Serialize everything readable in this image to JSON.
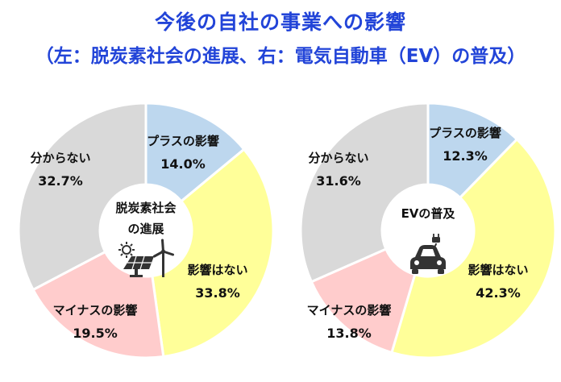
{
  "header": {
    "title": "今後の自社の事業への影響",
    "subtitle": "（左：脱炭素社会の進展、右：電気自動車（EV）の普及）"
  },
  "colors": {
    "title": "#2244d8",
    "positive": "#bdd7ee",
    "none": "#ffff99",
    "negative": "#ffcccc",
    "unknown": "#d9d9d9"
  },
  "chart_data": [
    {
      "type": "pie",
      "donut": true,
      "center_label": [
        "脱炭素社会",
        "の進展"
      ],
      "center_icon": "solar-panel-wind-turbine-icon",
      "categories": [
        "プラスの影響",
        "影響はない",
        "マイナスの影響",
        "分からない"
      ],
      "values": [
        14.0,
        33.8,
        19.5,
        32.7
      ],
      "value_labels": [
        "14.0%",
        "33.8%",
        "19.5%",
        "32.7%"
      ],
      "colors": [
        "#bdd7ee",
        "#ffff99",
        "#ffcccc",
        "#d9d9d9"
      ]
    },
    {
      "type": "pie",
      "donut": true,
      "center_label": [
        "EVの普及"
      ],
      "center_icon": "electric-car-icon",
      "categories": [
        "プラスの影響",
        "影響はない",
        "マイナスの影響",
        "分からない"
      ],
      "values": [
        12.3,
        42.3,
        13.8,
        31.6
      ],
      "value_labels": [
        "12.3%",
        "42.3%",
        "13.8%",
        "31.6%"
      ],
      "colors": [
        "#bdd7ee",
        "#ffff99",
        "#ffcccc",
        "#d9d9d9"
      ]
    }
  ]
}
